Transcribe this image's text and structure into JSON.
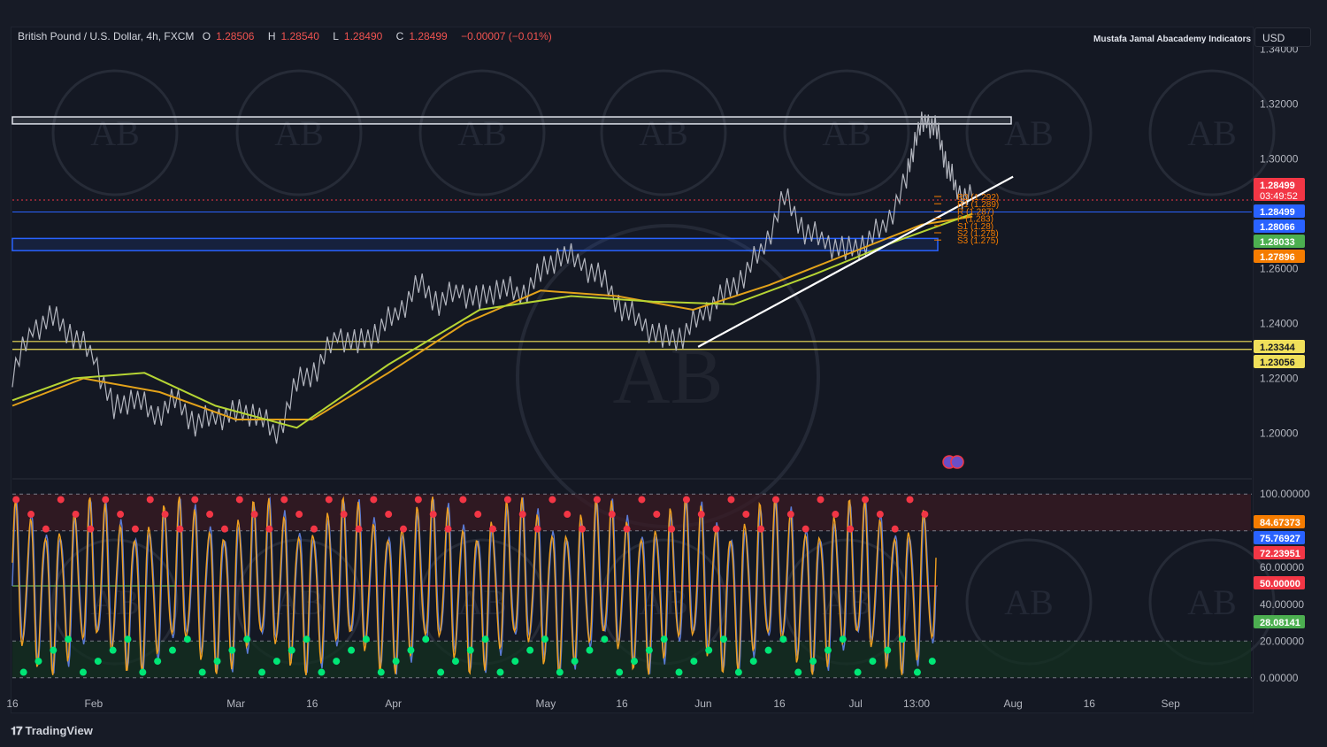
{
  "header": {
    "symbol": "British Pound / U.S. Dollar, 4h, FXCM",
    "open_label": "O",
    "open": "1.28506",
    "high_label": "H",
    "high": "1.28540",
    "low_label": "L",
    "low": "1.28490",
    "close_label": "C",
    "close": "1.28499",
    "change": "−0.00007 (−0.01%)"
  },
  "indicator_name": "Mustafa Jamal Abacademy Indicators",
  "currency_button": "USD",
  "branding": "TradingView",
  "chart_data": [
    {
      "type": "line",
      "name_text": "price-pane",
      "ylim": [
        1.185,
        1.345
      ],
      "y_ticks": [
        "1.34000",
        "1.32000",
        "1.30000",
        "1.28000",
        "1.26000",
        "1.24000",
        "1.22000",
        "1.20000"
      ],
      "y_tick_values": [
        1.34,
        1.32,
        1.3,
        1.28,
        1.26,
        1.24,
        1.22,
        1.2
      ],
      "x_ticks": [
        "16",
        "Feb",
        "Mar",
        "16",
        "Apr",
        "May",
        "16",
        "Jun",
        "16",
        "Jul",
        "13:00",
        "Aug",
        "16",
        "Sep"
      ],
      "x_tick_days": [
        16,
        32,
        60,
        75,
        91,
        121,
        136,
        152,
        167,
        182,
        194,
        213,
        228,
        244
      ],
      "x_range_days": [
        16,
        260
      ],
      "series": [
        {
          "name": "",
          "color": "#b2b5be",
          "values_x": [
            16,
            20,
            24,
            28,
            32,
            36,
            40,
            44,
            48,
            52,
            56,
            60,
            64,
            68,
            72,
            76,
            80,
            84,
            88,
            92,
            96,
            100,
            104,
            108,
            112,
            116,
            120,
            124,
            128,
            132,
            136,
            140,
            144,
            148,
            152,
            156,
            160,
            164,
            168,
            172,
            176,
            180,
            184,
            188,
            192,
            194,
            196,
            198,
            200,
            202,
            205
          ],
          "values_y": [
            1.222,
            1.238,
            1.242,
            1.236,
            1.228,
            1.208,
            1.214,
            1.206,
            1.212,
            1.204,
            1.206,
            1.207,
            1.208,
            1.199,
            1.218,
            1.224,
            1.236,
            1.232,
            1.238,
            1.244,
            1.254,
            1.248,
            1.252,
            1.248,
            1.254,
            1.25,
            1.258,
            1.266,
            1.262,
            1.256,
            1.246,
            1.24,
            1.234,
            1.236,
            1.244,
            1.25,
            1.258,
            1.268,
            1.286,
            1.274,
            1.27,
            1.266,
            1.27,
            1.276,
            1.292,
            1.31,
            1.314,
            1.31,
            1.298,
            1.288,
            1.285
          ]
        },
        {
          "name": "",
          "color": "#e3a21a",
          "values_x": [
            16,
            30,
            45,
            60,
            75,
            90,
            105,
            120,
            135,
            150,
            165,
            180,
            195,
            205
          ],
          "values_y": [
            1.21,
            1.22,
            1.215,
            1.205,
            1.205,
            1.222,
            1.24,
            1.252,
            1.25,
            1.245,
            1.254,
            1.265,
            1.276,
            1.279
          ]
        },
        {
          "name": "",
          "color": "#b6d534",
          "values_x": [
            16,
            28,
            42,
            56,
            72,
            90,
            108,
            126,
            142,
            158,
            174,
            190,
            205
          ],
          "values_y": [
            1.212,
            1.22,
            1.222,
            1.21,
            1.202,
            1.225,
            1.245,
            1.25,
            1.248,
            1.247,
            1.258,
            1.27,
            1.28
          ]
        }
      ],
      "levels": [
        {
          "label": "1.28499",
          "value": 1.28499,
          "bg": "#f23645",
          "timer": "03:49:52"
        },
        {
          "label": "1.28499",
          "value": 1.28499,
          "bg": "#2962ff"
        },
        {
          "label": "1.28066",
          "value": 1.28066,
          "bg": "#2962ff"
        },
        {
          "label": "1.28033",
          "value": 1.28033,
          "bg": "#4caf50"
        },
        {
          "label": "1.27896",
          "value": 1.27896,
          "bg": "#f57c00"
        },
        {
          "label": "1.23344",
          "value": 1.23344,
          "bg": "#f0e05a"
        },
        {
          "label": "1.23056",
          "value": 1.23056,
          "bg": "#f0e05a"
        }
      ],
      "zones": [
        {
          "from": 1.3134,
          "to": 1.3153,
          "color": "#e0e3eb"
        },
        {
          "from": 1.271,
          "to": 1.2672,
          "color": "#2962ff"
        }
      ],
      "pivots": [
        {
          "label": "R3 (1.292)",
          "value": 1.292
        },
        {
          "label": "R1 (1.289)",
          "value": 1.2892
        },
        {
          "label": "R (1.287)",
          "value": 1.2872
        },
        {
          "label": "P (1.283)",
          "value": 1.2832
        },
        {
          "label": "S1 (1.28)",
          "value": 1.2802
        },
        {
          "label": "S2 (1.278)",
          "value": 1.2782
        },
        {
          "label": "S3 (1.275)",
          "value": 1.2752
        }
      ]
    },
    {
      "type": "line",
      "name_text": "oscillator-pane",
      "ylim": [
        -3,
        103
      ],
      "y_ticks": [
        "100.00000",
        "60.00000",
        "40.00000",
        "20.00000",
        "0.00000"
      ],
      "y_tick_values": [
        100,
        60,
        40,
        20,
        0
      ],
      "levels": [
        {
          "label": "84.67373",
          "value": 84.67,
          "bg": "#f57c00"
        },
        {
          "label": "75.76927",
          "value": 75.77,
          "bg": "#2962ff"
        },
        {
          "label": "72.23951",
          "value": 72.24,
          "bg": "#f23645"
        },
        {
          "label": "50.00000",
          "value": 50,
          "bg": "#f23645"
        },
        {
          "label": "28.08141",
          "value": 28.08,
          "bg": "#4caf50"
        }
      ],
      "overbought": 80,
      "oversold": 20,
      "midline": 50,
      "series": [
        {
          "name": "",
          "color": "#5b7bd5",
          "cycles": 62
        },
        {
          "name": "",
          "color": "#f0a020",
          "cycles": 62
        }
      ]
    }
  ]
}
